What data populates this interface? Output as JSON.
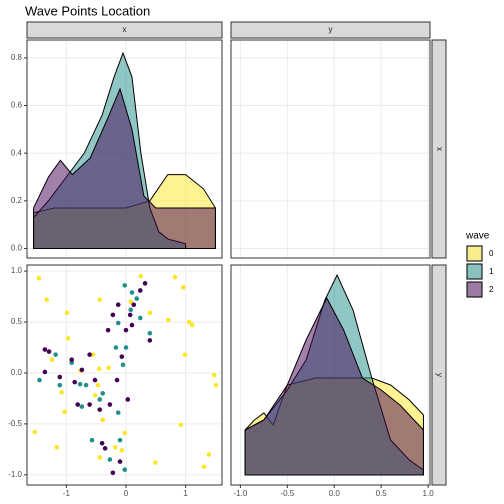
{
  "title": "Wave Points Location",
  "strips": {
    "top": [
      "x",
      "y"
    ],
    "right": [
      "x",
      "y"
    ]
  },
  "legend": {
    "title": "wave"
  },
  "chart_data": [
    {
      "type": "area",
      "xlim": [
        -1.66,
        1.61
      ],
      "ylim": [
        -0.04,
        0.875
      ],
      "yticks": [
        {
          "value": 0,
          "label": "0.0"
        },
        {
          "value": 0.2,
          "label": "0.2"
        },
        {
          "value": 0.4,
          "label": "0.4"
        },
        {
          "value": 0.6,
          "label": "0.6"
        },
        {
          "value": 0.8,
          "label": "0.8"
        }
      ],
      "series": [
        {
          "name": "0",
          "color": "#FDE725",
          "x": [
            -1.55,
            -1.2,
            -0.8,
            -0.4,
            0,
            0.4,
            0.7,
            1.0,
            1.3,
            1.5
          ],
          "values": [
            0.15,
            0.17,
            0.17,
            0.17,
            0.17,
            0.2,
            0.31,
            0.31,
            0.25,
            0.17
          ]
        },
        {
          "name": "1",
          "color": "#21908C",
          "x": [
            -1.55,
            -1.3,
            -1.0,
            -0.7,
            -0.4,
            -0.2,
            -0.05,
            0.1,
            0.25,
            0.4,
            0.55,
            0.7,
            1.0
          ],
          "values": [
            0.13,
            0.2,
            0.3,
            0.4,
            0.56,
            0.72,
            0.82,
            0.72,
            0.4,
            0.17,
            0.07,
            0.04,
            0.02
          ]
        },
        {
          "name": "2",
          "color": "#440154",
          "x": [
            -1.55,
            -1.3,
            -1.1,
            -0.9,
            -0.6,
            -0.3,
            -0.1,
            0.1,
            0.3,
            0.5,
            0.8,
            1.1,
            1.5
          ],
          "values": [
            0.17,
            0.3,
            0.37,
            0.31,
            0.38,
            0.55,
            0.67,
            0.5,
            0.22,
            0.17,
            0.17,
            0.17,
            0.17
          ]
        }
      ]
    },
    {
      "type": "scatter",
      "xlim": [
        -1.66,
        1.61
      ],
      "ylim": [
        -1.1,
        1.06
      ],
      "xticks": [
        -1,
        0,
        1
      ],
      "yticks": [
        {
          "value": -1,
          "label": "-1.0"
        },
        {
          "value": -0.5,
          "label": "-0.5"
        },
        {
          "value": 0,
          "label": "0.0"
        },
        {
          "value": 0.5,
          "label": "0.5"
        },
        {
          "value": 1,
          "label": "1.0"
        }
      ],
      "series": [
        {
          "color": "#FDE725",
          "x": [
            -1.46,
            -1.33,
            -0.99,
            -0.44,
            0.25,
            0.82,
            0.96,
            0.71,
            1.06,
            1.11,
            0.99,
            1.48,
            1.51,
            1.39,
            1.31,
            0.92,
            0.49,
            -1.53,
            -1.16,
            -1.03,
            -1.08,
            -0.97,
            -0.55,
            -0.45,
            -0.52,
            -0.39,
            -0.02,
            -0.07,
            -0.18,
            -0.44,
            -1.24,
            -0.76,
            -0.29,
            0.4,
            0.08,
            -0.47
          ],
          "values": [
            0.93,
            0.72,
            0.59,
            0.72,
            0.95,
            0.94,
            0.84,
            0.52,
            0.5,
            0.47,
            0.18,
            -0.02,
            -0.12,
            -0.8,
            -0.92,
            -0.51,
            -0.88,
            -0.58,
            -0.73,
            -0.38,
            -0.19,
            0.34,
            0.18,
            0.04,
            -0.22,
            -0.46,
            -0.59,
            -0.76,
            -0.73,
            -0.83,
            0.13,
            0.02,
            0.05,
            0.59,
            0.7,
            -0.12
          ]
        },
        {
          "color": "#21908C",
          "x": [
            -0.02,
            0.1,
            0.18,
            0.24,
            0.4,
            -0.13,
            -0.17,
            -0.67,
            -1.18,
            -1.45,
            -0.77,
            -0.74,
            -0.44,
            -0.13,
            -0.1,
            -0.27,
            -0.02,
            -0.39,
            -0.91,
            0,
            -0.05,
            -1.11,
            0.08,
            -0.57
          ],
          "values": [
            0.86,
            0.79,
            0.73,
            0.54,
            0.39,
            0.49,
            0.25,
            -0.12,
            0.18,
            -0.07,
            -0.11,
            -0.33,
            -0.26,
            -0.39,
            -0.66,
            -0.85,
            -0.95,
            -0.2,
            0.1,
            0.25,
            0.08,
            -0.12,
            0.62,
            -0.66
          ]
        },
        {
          "color": "#440154",
          "x": [
            -1.36,
            -1.29,
            -1.36,
            -1.11,
            -0.86,
            -0.74,
            -0.52,
            -0.61,
            -0.81,
            -0.44,
            -0.27,
            -0.4,
            -0.35,
            -0.22,
            -0.1,
            -0.15,
            -0.07,
            0,
            0.07,
            0.13,
            0.24,
            0.32,
            0.4,
            -0.3,
            -0.22,
            -0.13,
            -0.91,
            0.1,
            -0.61,
            0.03
          ],
          "values": [
            0.23,
            0.21,
            0.01,
            -0.04,
            -0.09,
            0.03,
            -0.07,
            -0.31,
            -0.31,
            -0.36,
            -0.31,
            -0.69,
            -0.74,
            -0.98,
            -0.87,
            -0.07,
            0.16,
            0.42,
            0.57,
            0.67,
            0.81,
            0.88,
            0.32,
            0.42,
            0.57,
            0.67,
            0.13,
            0.47,
            0.18,
            -0.26
          ]
        }
      ]
    },
    {
      "type": "area",
      "xlim": [
        -1.1,
        1.02
      ],
      "ylim": [
        -0.05,
        1.05
      ],
      "xticks": [
        {
          "value": -1,
          "label": "-1.0"
        },
        {
          "value": -0.5,
          "label": "-0.5"
        },
        {
          "value": 0,
          "label": "0.0"
        },
        {
          "value": 0.5,
          "label": "0.5"
        },
        {
          "value": 1,
          "label": "1.0"
        }
      ],
      "series": [
        {
          "color": "#FDE725",
          "x": [
            -0.95,
            -0.85,
            -0.75,
            -0.65,
            -0.5,
            -0.2,
            0.1,
            0.4,
            0.6,
            0.8,
            0.95
          ],
          "values": [
            0.225,
            0.275,
            0.31,
            0.25,
            0.45,
            0.485,
            0.485,
            0.485,
            0.45,
            0.375,
            0.3
          ]
        },
        {
          "color": "#21908C",
          "x": [
            -0.95,
            -0.75,
            -0.5,
            -0.3,
            -0.1,
            0.03,
            0.2,
            0.4,
            0.6,
            0.8,
            0.95
          ],
          "values": [
            0.225,
            0.275,
            0.425,
            0.575,
            0.875,
            1.0,
            0.825,
            0.485,
            0.175,
            0.075,
            0.025
          ]
        },
        {
          "color": "#440154",
          "x": [
            -0.95,
            -0.75,
            -0.5,
            -0.3,
            -0.08,
            0.1,
            0.3,
            0.5,
            0.7,
            0.95
          ],
          "values": [
            0.225,
            0.275,
            0.45,
            0.675,
            0.885,
            0.725,
            0.485,
            0.425,
            0.35,
            0.225
          ]
        }
      ]
    }
  ]
}
